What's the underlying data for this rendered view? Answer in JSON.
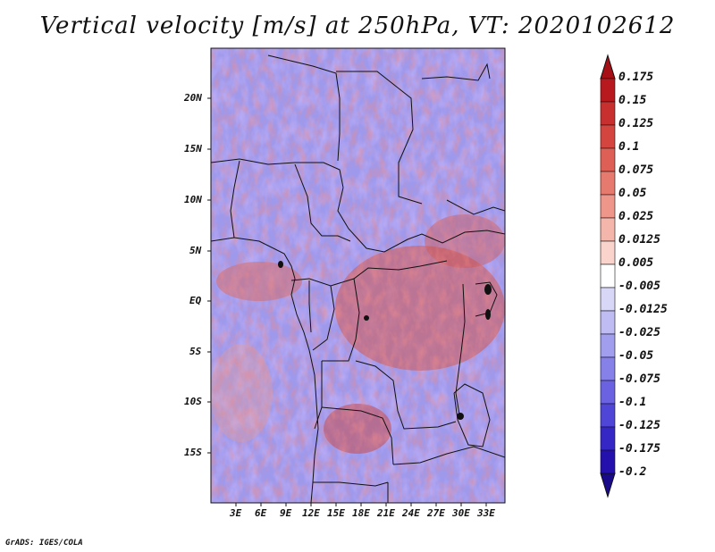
{
  "title": "Vertical velocity [m/s] at 250hPa, VT: 2020102612",
  "credit": "GrADS: IGES/COLA",
  "map": {
    "variable": "Vertical velocity",
    "units": "m/s",
    "level": "250hPa",
    "valid_time": "2020102612",
    "lat_range": [
      -20,
      25
    ],
    "lon_range": [
      0,
      36
    ],
    "lat_ticks": [
      "20N",
      "15N",
      "10N",
      "5N",
      "EQ",
      "5S",
      "10S",
      "15S"
    ],
    "lon_ticks": [
      "3E",
      "6E",
      "9E",
      "12E",
      "15E",
      "18E",
      "21E",
      "24E",
      "27E",
      "30E",
      "33E"
    ]
  },
  "colorbar": {
    "labels": [
      "0.175",
      "0.15",
      "0.125",
      "0.1",
      "0.075",
      "0.05",
      "0.025",
      "0.0125",
      "0.005",
      "-0.005",
      "-0.0125",
      "-0.025",
      "-0.05",
      "-0.075",
      "-0.1",
      "-0.125",
      "-0.175",
      "-0.2"
    ],
    "colors": [
      "#a50f15",
      "#b8191f",
      "#c8302f",
      "#d4453f",
      "#de5f55",
      "#e77a6e",
      "#ee968a",
      "#f4b5ab",
      "#f9d3cc",
      "#ffffff",
      "#d9d7f7",
      "#bfbcf3",
      "#a29eee",
      "#8681e8",
      "#6a62e0",
      "#4f45d6",
      "#3526c6",
      "#2411ad",
      "#190a8a"
    ]
  }
}
